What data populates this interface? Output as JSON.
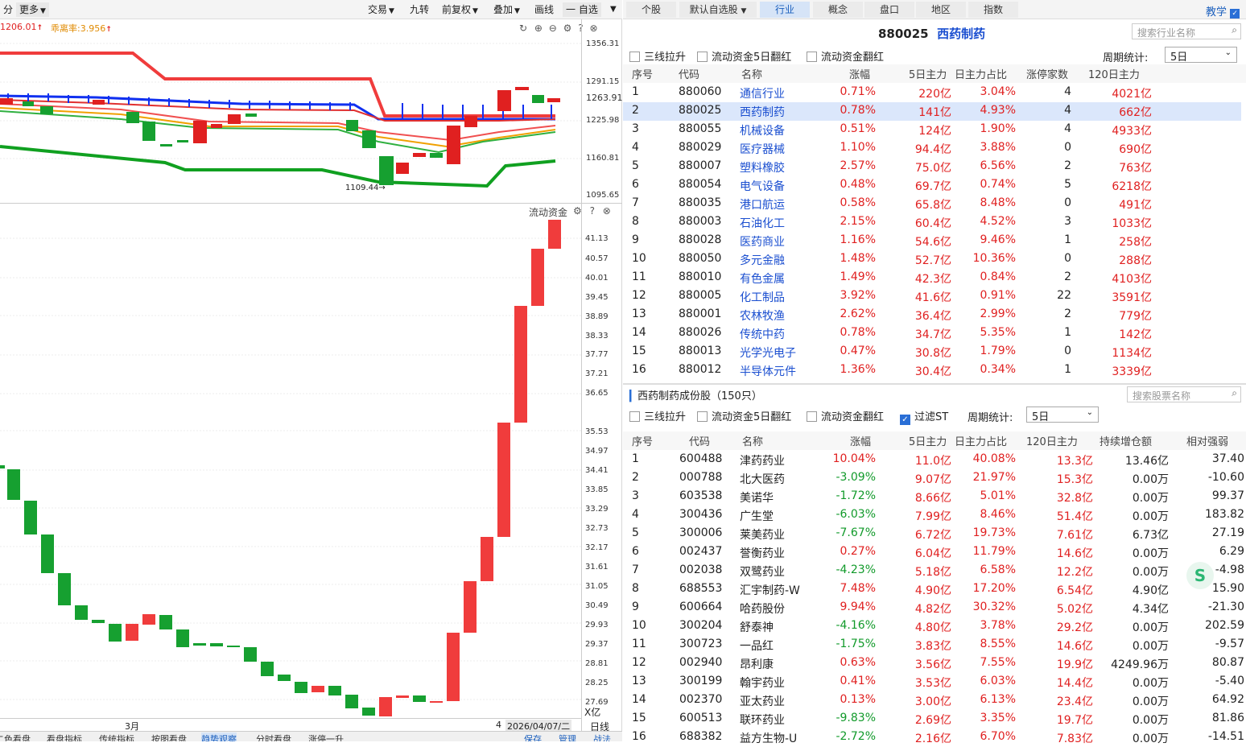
{
  "left": {
    "toolbar": {
      "left_items": [
        "分",
        "更多"
      ],
      "right_items": [
        "交易",
        "九转",
        "前复权",
        "叠加",
        "画线",
        "一 自选"
      ]
    },
    "main_values": {
      "price": "1206.01",
      "ratio_label": "乖离率:3.956"
    },
    "kline_axis": [
      "1356.31",
      "1291.15",
      "1263.91",
      "1225.98",
      "1160.81",
      "1095.65"
    ],
    "low_marker": "1109.44",
    "flow_title": "流动资金",
    "flow_axis": [
      "41.13",
      "40.57",
      "40.01",
      "39.45",
      "38.89",
      "38.33",
      "37.77",
      "37.21",
      "36.65",
      "35.53",
      "34.97",
      "34.41",
      "33.85",
      "33.29",
      "32.73",
      "32.17",
      "31.61",
      "31.05",
      "30.49",
      "29.93",
      "29.37",
      "28.81",
      "28.25",
      "27.69"
    ],
    "flow_unit": "X亿",
    "date_axis": {
      "month": "3月",
      "right_mark": "4",
      "date": "2026/04/07/二",
      "period": "日线"
    },
    "bottom_tabs": [
      "二色看盘",
      "看盘指标",
      "传统指标",
      "按图看盘",
      "趋势观察",
      "分时看盘",
      "涨停一升"
    ],
    "bottom_right": [
      "保存",
      "管理",
      "战法"
    ]
  },
  "right": {
    "tabs": [
      "个股",
      "默认自选股",
      "行业",
      "概念",
      "盘口",
      "地区",
      "指数"
    ],
    "teach_label": "教学",
    "sector_code": "880025",
    "sector_name": "西药制药",
    "search1": "搜索行业名称",
    "filters": [
      "三线拉升",
      "流动资金5日翻红",
      "流动资金翻红"
    ],
    "period_label": "周期统计:",
    "period_value": "5日",
    "ind_headers": [
      "序号",
      "代码",
      "名称",
      "涨幅",
      "5日主力",
      "日主力占比",
      "涨停家数",
      "120日主力"
    ],
    "industries": [
      {
        "n": "1",
        "code": "880060",
        "name": "通信行业",
        "chg": "0.71%",
        "m5": "220亿",
        "ratio": "3.04%",
        "zt": "4",
        "m120": "4021亿"
      },
      {
        "n": "2",
        "code": "880025",
        "name": "西药制药",
        "chg": "0.78%",
        "m5": "141亿",
        "ratio": "4.93%",
        "zt": "4",
        "m120": "662亿"
      },
      {
        "n": "3",
        "code": "880055",
        "name": "机械设备",
        "chg": "0.51%",
        "m5": "124亿",
        "ratio": "1.90%",
        "zt": "4",
        "m120": "4933亿"
      },
      {
        "n": "4",
        "code": "880029",
        "name": "医疗器械",
        "chg": "1.10%",
        "m5": "94.4亿",
        "ratio": "3.88%",
        "zt": "0",
        "m120": "690亿"
      },
      {
        "n": "5",
        "code": "880007",
        "name": "塑料橡胶",
        "chg": "2.57%",
        "m5": "75.0亿",
        "ratio": "6.56%",
        "zt": "2",
        "m120": "763亿"
      },
      {
        "n": "6",
        "code": "880054",
        "name": "电气设备",
        "chg": "0.48%",
        "m5": "69.7亿",
        "ratio": "0.74%",
        "zt": "5",
        "m120": "6218亿"
      },
      {
        "n": "7",
        "code": "880035",
        "name": "港口航运",
        "chg": "0.58%",
        "m5": "65.8亿",
        "ratio": "8.48%",
        "zt": "0",
        "m120": "491亿"
      },
      {
        "n": "8",
        "code": "880003",
        "name": "石油化工",
        "chg": "2.15%",
        "m5": "60.4亿",
        "ratio": "4.52%",
        "zt": "3",
        "m120": "1033亿"
      },
      {
        "n": "9",
        "code": "880028",
        "name": "医药商业",
        "chg": "1.16%",
        "m5": "54.6亿",
        "ratio": "9.46%",
        "zt": "1",
        "m120": "258亿"
      },
      {
        "n": "10",
        "code": "880050",
        "name": "多元金融",
        "chg": "1.48%",
        "m5": "52.7亿",
        "ratio": "10.36%",
        "zt": "0",
        "m120": "288亿"
      },
      {
        "n": "11",
        "code": "880010",
        "name": "有色金属",
        "chg": "1.49%",
        "m5": "42.3亿",
        "ratio": "0.84%",
        "zt": "2",
        "m120": "4103亿"
      },
      {
        "n": "12",
        "code": "880005",
        "name": "化工制品",
        "chg": "3.92%",
        "m5": "41.6亿",
        "ratio": "0.91%",
        "zt": "22",
        "m120": "3591亿"
      },
      {
        "n": "13",
        "code": "880001",
        "name": "农林牧渔",
        "chg": "2.62%",
        "m5": "36.4亿",
        "ratio": "2.99%",
        "zt": "2",
        "m120": "779亿"
      },
      {
        "n": "14",
        "code": "880026",
        "name": "传统中药",
        "chg": "0.78%",
        "m5": "34.7亿",
        "ratio": "5.35%",
        "zt": "1",
        "m120": "142亿"
      },
      {
        "n": "15",
        "code": "880013",
        "name": "光学光电子",
        "chg": "0.47%",
        "m5": "30.8亿",
        "ratio": "1.79%",
        "zt": "0",
        "m120": "1134亿"
      },
      {
        "n": "16",
        "code": "880012",
        "name": "半导体元件",
        "chg": "1.36%",
        "m5": "30.4亿",
        "ratio": "0.34%",
        "zt": "1",
        "m120": "3339亿"
      }
    ],
    "sub_title": "西药制药成份股（150只）",
    "search2": "搜索股票名称",
    "filters2": [
      "三线拉升",
      "流动资金5日翻红",
      "流动资金翻红",
      "过滤ST"
    ],
    "stk_headers": [
      "序号",
      "代码",
      "名称",
      "涨幅",
      "5日主力",
      "日主力占比",
      "120日主力",
      "持续增仓额",
      "相对强弱"
    ],
    "stocks": [
      {
        "n": "1",
        "code": "600488",
        "name": "津药药业",
        "chg": "10.04%",
        "m5": "11.0亿",
        "ratio": "40.08%",
        "m120": "13.3亿",
        "inc": "13.46亿",
        "rs": "37.40"
      },
      {
        "n": "2",
        "code": "000788",
        "name": "北大医药",
        "chg": "-3.09%",
        "m5": "9.07亿",
        "ratio": "21.97%",
        "m120": "15.3亿",
        "inc": "0.00万",
        "rs": "-10.60"
      },
      {
        "n": "3",
        "code": "603538",
        "name": "美诺华",
        "chg": "-1.72%",
        "m5": "8.66亿",
        "ratio": "5.01%",
        "m120": "32.8亿",
        "inc": "0.00万",
        "rs": "99.37"
      },
      {
        "n": "4",
        "code": "300436",
        "name": "广生堂",
        "chg": "-6.03%",
        "m5": "7.99亿",
        "ratio": "8.46%",
        "m120": "51.4亿",
        "inc": "0.00万",
        "rs": "183.82"
      },
      {
        "n": "5",
        "code": "300006",
        "name": "莱美药业",
        "chg": "-7.67%",
        "m5": "6.72亿",
        "ratio": "19.73%",
        "m120": "7.61亿",
        "inc": "6.73亿",
        "rs": "27.19"
      },
      {
        "n": "6",
        "code": "002437",
        "name": "誉衡药业",
        "chg": "0.27%",
        "m5": "6.04亿",
        "ratio": "11.79%",
        "m120": "14.6亿",
        "inc": "0.00万",
        "rs": "6.29"
      },
      {
        "n": "7",
        "code": "002038",
        "name": "双鹭药业",
        "chg": "-4.23%",
        "m5": "5.18亿",
        "ratio": "6.58%",
        "m120": "12.2亿",
        "inc": "0.00万",
        "rs": "-4.98"
      },
      {
        "n": "8",
        "code": "688553",
        "name": "汇宇制药-W",
        "chg": "7.48%",
        "m5": "4.90亿",
        "ratio": "17.20%",
        "m120": "6.54亿",
        "inc": "4.90亿",
        "rs": "15.90"
      },
      {
        "n": "9",
        "code": "600664",
        "name": "哈药股份",
        "chg": "9.94%",
        "m5": "4.82亿",
        "ratio": "30.32%",
        "m120": "5.02亿",
        "inc": "4.34亿",
        "rs": "-21.30"
      },
      {
        "n": "10",
        "code": "300204",
        "name": "舒泰神",
        "chg": "-4.16%",
        "m5": "4.80亿",
        "ratio": "3.78%",
        "m120": "29.2亿",
        "inc": "0.00万",
        "rs": "202.59"
      },
      {
        "n": "11",
        "code": "300723",
        "name": "一品红",
        "chg": "-1.75%",
        "m5": "3.83亿",
        "ratio": "8.55%",
        "m120": "14.6亿",
        "inc": "0.00万",
        "rs": "-9.57"
      },
      {
        "n": "12",
        "code": "002940",
        "name": "昂利康",
        "chg": "0.63%",
        "m5": "3.56亿",
        "ratio": "7.55%",
        "m120": "19.9亿",
        "inc": "4249.96万",
        "rs": "80.87"
      },
      {
        "n": "13",
        "code": "300199",
        "name": "翰宇药业",
        "chg": "0.41%",
        "m5": "3.53亿",
        "ratio": "6.03%",
        "m120": "14.4亿",
        "inc": "0.00万",
        "rs": "-5.40"
      },
      {
        "n": "14",
        "code": "002370",
        "name": "亚太药业",
        "chg": "0.13%",
        "m5": "3.00亿",
        "ratio": "6.13%",
        "m120": "23.4亿",
        "inc": "0.00万",
        "rs": "64.92"
      },
      {
        "n": "15",
        "code": "600513",
        "name": "联环药业",
        "chg": "-9.83%",
        "m5": "2.69亿",
        "ratio": "3.35%",
        "m120": "19.7亿",
        "inc": "0.00万",
        "rs": "81.86"
      },
      {
        "n": "16",
        "code": "688382",
        "name": "益方生物-U",
        "chg": "-2.72%",
        "m5": "2.16亿",
        "ratio": "6.70%",
        "m120": "7.83亿",
        "inc": "0.00万",
        "rs": "-14.51"
      }
    ]
  }
}
